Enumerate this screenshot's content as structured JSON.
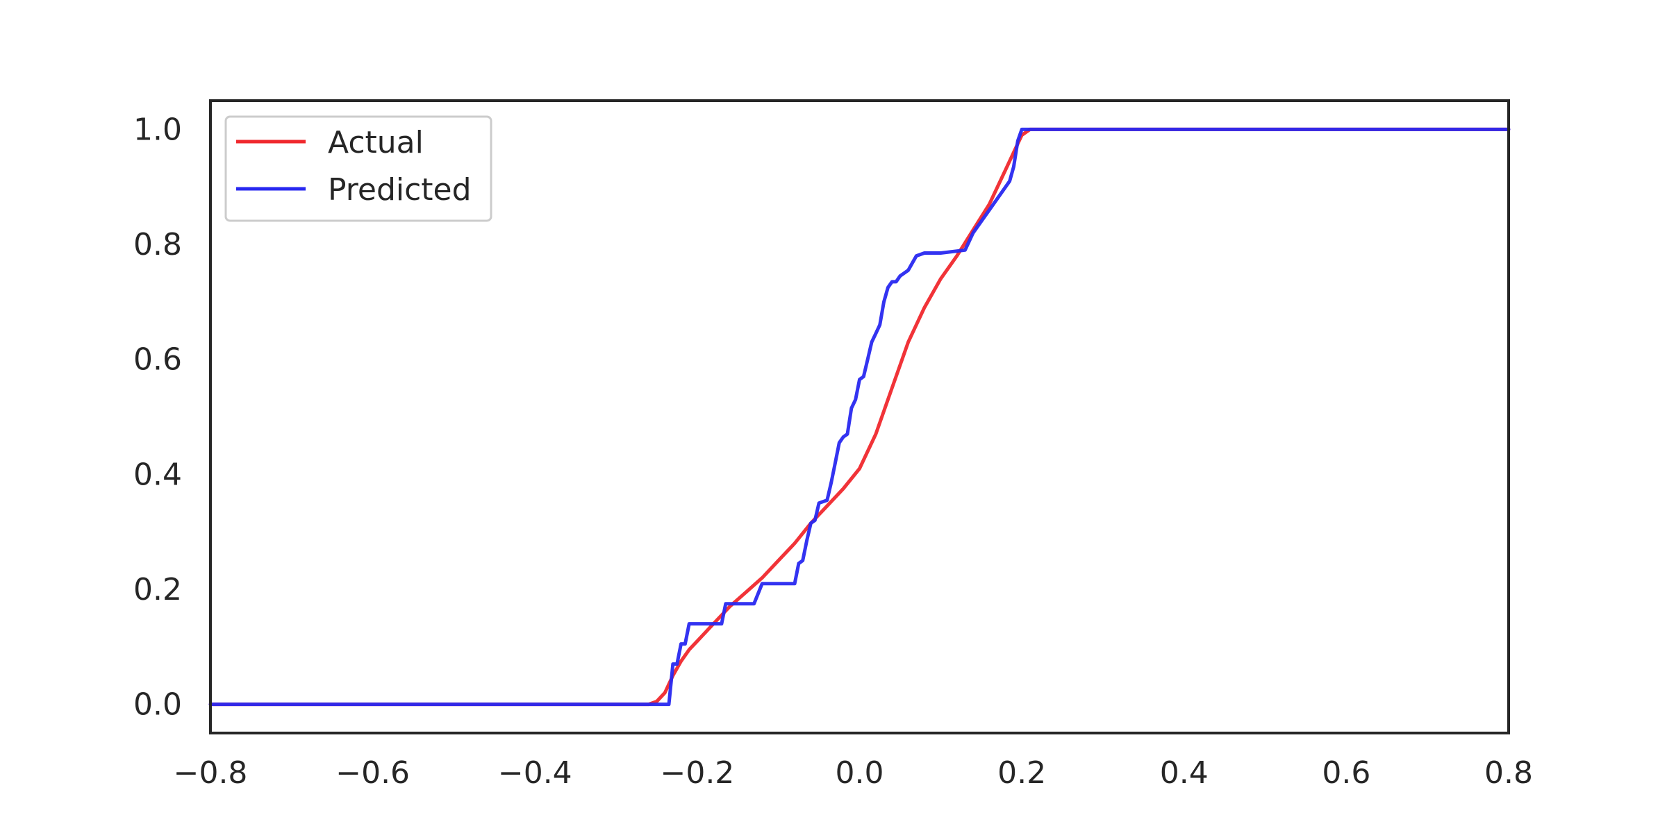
{
  "chart_data": {
    "type": "line",
    "title": "",
    "xlabel": "",
    "ylabel": "",
    "xlim": [
      -0.8,
      0.8
    ],
    "ylim": [
      -0.05,
      1.05
    ],
    "x_ticks": [
      -0.8,
      -0.6,
      -0.4,
      -0.2,
      0.0,
      0.2,
      0.4,
      0.6,
      0.8
    ],
    "x_tick_labels": [
      "−0.8",
      "−0.6",
      "−0.4",
      "−0.2",
      "0.0",
      "0.2",
      "0.4",
      "0.6",
      "0.8"
    ],
    "y_ticks": [
      0.0,
      0.2,
      0.4,
      0.6,
      0.8,
      1.0
    ],
    "y_tick_labels": [
      "0.0",
      "0.2",
      "0.4",
      "0.6",
      "0.8",
      "1.0"
    ],
    "grid": false,
    "legend_position": "upper-left",
    "series": [
      {
        "name": "Actual",
        "color": "#f0282d",
        "x": [
          -0.8,
          -0.26,
          -0.25,
          -0.24,
          -0.23,
          -0.22,
          -0.21,
          -0.2,
          -0.18,
          -0.16,
          -0.14,
          -0.12,
          -0.1,
          -0.08,
          -0.06,
          -0.04,
          -0.02,
          0.0,
          0.02,
          0.04,
          0.06,
          0.08,
          0.1,
          0.12,
          0.14,
          0.16,
          0.18,
          0.19,
          0.2,
          0.21,
          0.22,
          0.8
        ],
        "y": [
          0.0,
          0.0,
          0.005,
          0.02,
          0.05,
          0.075,
          0.095,
          0.11,
          0.14,
          0.17,
          0.195,
          0.22,
          0.25,
          0.28,
          0.315,
          0.345,
          0.375,
          0.41,
          0.47,
          0.55,
          0.63,
          0.69,
          0.74,
          0.78,
          0.825,
          0.87,
          0.93,
          0.96,
          0.99,
          1.0,
          1.0,
          1.0
        ]
      },
      {
        "name": "Predicted",
        "color": "#2828f0",
        "x": [
          -0.8,
          -0.235,
          -0.23,
          -0.225,
          -0.22,
          -0.215,
          -0.21,
          -0.2,
          -0.195,
          -0.17,
          -0.165,
          -0.16,
          -0.13,
          -0.12,
          -0.115,
          -0.08,
          -0.075,
          -0.07,
          -0.065,
          -0.06,
          -0.055,
          -0.05,
          -0.04,
          -0.035,
          -0.03,
          -0.025,
          -0.02,
          -0.015,
          -0.01,
          -0.005,
          0.0,
          0.005,
          0.01,
          0.015,
          0.02,
          0.025,
          0.03,
          0.035,
          0.04,
          0.045,
          0.05,
          0.055,
          0.06,
          0.07,
          0.08,
          0.09,
          0.1,
          0.13,
          0.14,
          0.15,
          0.16,
          0.17,
          0.18,
          0.185,
          0.19,
          0.195,
          0.2,
          0.21,
          0.8
        ],
        "y": [
          0.0,
          0.0,
          0.07,
          0.07,
          0.105,
          0.105,
          0.14,
          0.14,
          0.14,
          0.14,
          0.175,
          0.175,
          0.175,
          0.21,
          0.21,
          0.21,
          0.245,
          0.25,
          0.285,
          0.315,
          0.32,
          0.35,
          0.355,
          0.385,
          0.42,
          0.455,
          0.465,
          0.47,
          0.515,
          0.53,
          0.565,
          0.57,
          0.6,
          0.63,
          0.645,
          0.66,
          0.7,
          0.725,
          0.735,
          0.735,
          0.745,
          0.75,
          0.755,
          0.78,
          0.785,
          0.785,
          0.785,
          0.79,
          0.82,
          0.84,
          0.86,
          0.88,
          0.9,
          0.91,
          0.935,
          0.98,
          1.0,
          1.0,
          1.0
        ]
      }
    ]
  }
}
